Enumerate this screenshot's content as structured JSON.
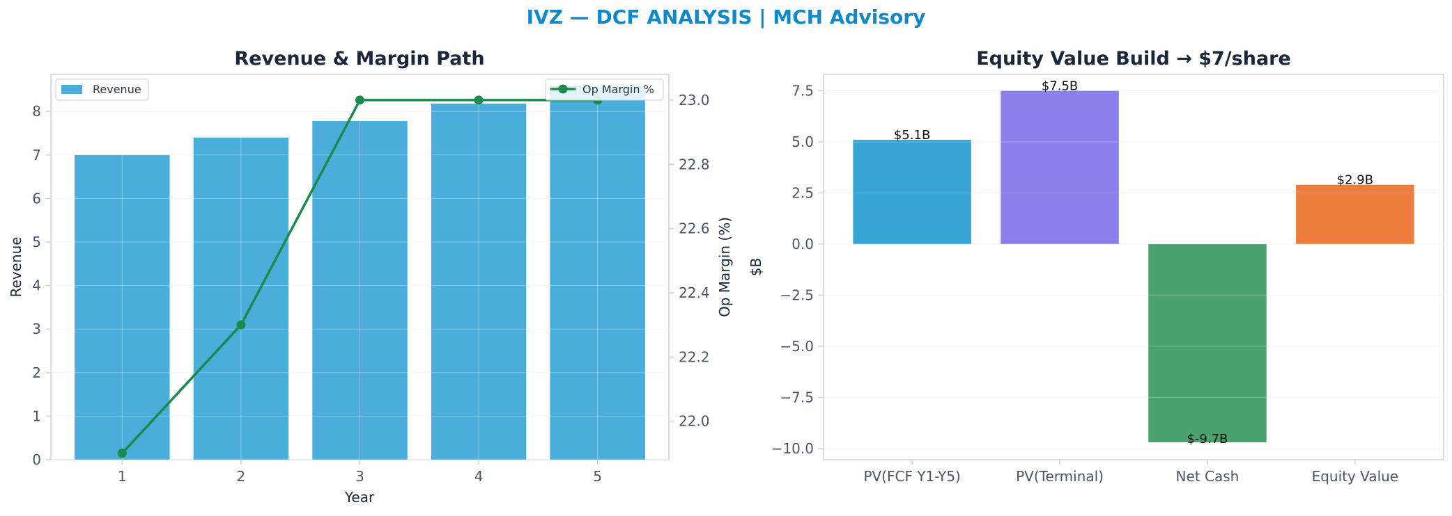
{
  "suptitle": "IVZ — DCF ANALYSIS | MCH Advisory",
  "colors": {
    "suptitle": "#1289c7",
    "revenue_bar": "#4badda",
    "margin_line": "#1b8a4c",
    "grid": "#e8edf3",
    "spine": "#c8d1dc",
    "pv_fcf": "#35a3d4",
    "pv_terminal": "#8b7fec",
    "net_cash": "#4aa36f",
    "equity_value": "#ed7d3c"
  },
  "chart_data": [
    {
      "type": "bar",
      "title": "Revenue & Margin Path",
      "xlabel": "Year",
      "ylabel": "Revenue",
      "y2label": "Op Margin (%)",
      "categories": [
        "1",
        "2",
        "3",
        "4",
        "5"
      ],
      "yticks": [
        "0",
        "1",
        "2",
        "3",
        "4",
        "5",
        "6",
        "7",
        "8"
      ],
      "y2ticks": [
        "22.0",
        "22.2",
        "22.4",
        "22.6",
        "22.8",
        "23.0"
      ],
      "ylim": [
        0,
        8.85
      ],
      "y2lim": [
        21.88,
        23.08
      ],
      "grid": true,
      "series": [
        {
          "name": "Revenue",
          "type": "bar",
          "axis": "left",
          "values": [
            7.0,
            7.4,
            7.78,
            8.18,
            8.58
          ]
        },
        {
          "name": "Op Margin %",
          "type": "line",
          "axis": "right",
          "values": [
            21.9,
            22.3,
            23.0,
            23.0,
            23.0
          ]
        }
      ],
      "legend_left": "upper-left",
      "legend_right": "upper-right"
    },
    {
      "type": "bar",
      "title": "Equity Value Build → $7/share",
      "xlabel": "",
      "ylabel": "$B",
      "categories": [
        "PV(FCF Y1-Y5)",
        "PV(Terminal)",
        "Net Cash",
        "Equity Value"
      ],
      "values": [
        5.1,
        7.5,
        -9.7,
        2.9
      ],
      "data_labels": [
        "$5.1B",
        "$7.5B",
        "$-9.7B",
        "$2.9B"
      ],
      "yticks": [
        "−10.0",
        "−7.5",
        "−5.0",
        "−2.5",
        "0.0",
        "2.5",
        "5.0",
        "7.5"
      ],
      "ylim": [
        -10.55,
        8.3
      ],
      "grid": true
    }
  ]
}
